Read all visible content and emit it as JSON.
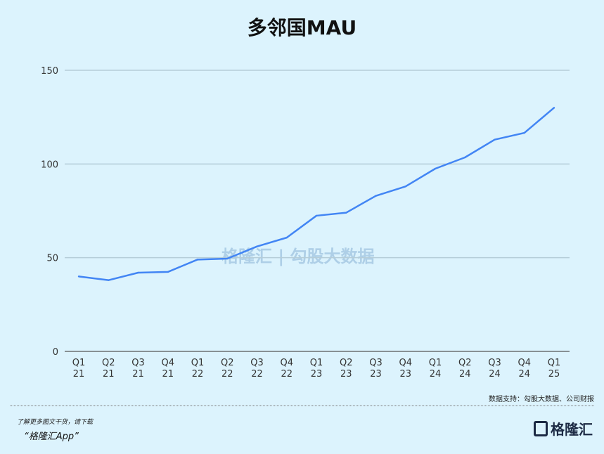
{
  "chart_data": {
    "type": "line",
    "title": "多邻国MAU",
    "categories": [
      [
        "Q1",
        "21"
      ],
      [
        "Q2",
        "21"
      ],
      [
        "Q3",
        "21"
      ],
      [
        "Q4",
        "21"
      ],
      [
        "Q1",
        "22"
      ],
      [
        "Q2",
        "22"
      ],
      [
        "Q3",
        "22"
      ],
      [
        "Q4",
        "22"
      ],
      [
        "Q1",
        "23"
      ],
      [
        "Q2",
        "23"
      ],
      [
        "Q3",
        "23"
      ],
      [
        "Q4",
        "23"
      ],
      [
        "Q1",
        "24"
      ],
      [
        "Q2",
        "24"
      ],
      [
        "Q3",
        "24"
      ],
      [
        "Q4",
        "24"
      ],
      [
        "Q1",
        "25"
      ]
    ],
    "series": [
      {
        "name": "MAU",
        "values": [
          40,
          38,
          42,
          42.4,
          49,
          49.5,
          56,
          60.7,
          72.4,
          74,
          83,
          88,
          97.5,
          103.5,
          113,
          116.6,
          130
        ],
        "color": "#4285f4"
      }
    ],
    "yticks": [
      "0",
      "50",
      "100",
      "150"
    ],
    "ylim": [
      0,
      150
    ],
    "grid": true,
    "xlabel": "",
    "ylabel": ""
  },
  "source": "数据支持：勾股大数据、公司财报",
  "promo": {
    "line1": "了解更多图文干货，请下载",
    "line2": "“格隆汇App”"
  },
  "logo": {
    "text": "格隆汇"
  },
  "watermark": "格隆汇 | 勾股大数据"
}
